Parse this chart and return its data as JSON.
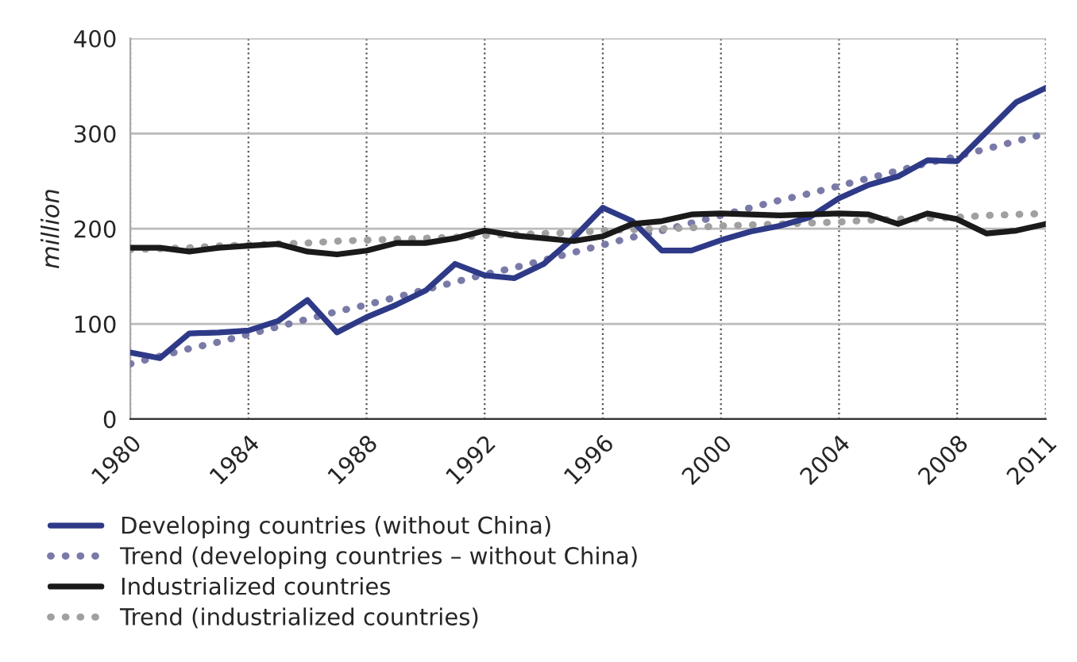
{
  "chart_data": {
    "type": "line",
    "ylabel": "million",
    "x": [
      1980,
      1981,
      1982,
      1983,
      1984,
      1985,
      1986,
      1987,
      1988,
      1989,
      1990,
      1991,
      1992,
      1993,
      1994,
      1995,
      1996,
      1997,
      1998,
      1999,
      2000,
      2001,
      2002,
      2003,
      2004,
      2005,
      2006,
      2007,
      2008,
      2009,
      2010,
      2011
    ],
    "series": [
      {
        "name": "Developing countries (without China)",
        "color": "#2e3a87",
        "line_style": "solid",
        "values": [
          70,
          64,
          90,
          91,
          93,
          103,
          125,
          91,
          107,
          120,
          135,
          163,
          151,
          148,
          163,
          190,
          222,
          208,
          177,
          177,
          188,
          197,
          203,
          212,
          232,
          246,
          255,
          272,
          271,
          302,
          333,
          348
        ]
      },
      {
        "name": "Trend (developing countries – without China)",
        "color": "#7a7aa8",
        "line_style": "dotted",
        "values": [
          58,
          66,
          74,
          81,
          89,
          97,
          105,
          113,
          120,
          128,
          136,
          144,
          152,
          159,
          167,
          175,
          183,
          191,
          198,
          206,
          214,
          222,
          230,
          237,
          245,
          253,
          261,
          269,
          276,
          284,
          292,
          300
        ]
      },
      {
        "name": "Industrialized countries",
        "color": "#1a1a1a",
        "line_style": "solid",
        "values": [
          180,
          180,
          176,
          180,
          182,
          184,
          176,
          173,
          177,
          185,
          185,
          190,
          198,
          193,
          190,
          187,
          192,
          205,
          208,
          215,
          216,
          215,
          214,
          215,
          216,
          215,
          205,
          216,
          210,
          195,
          198,
          205
        ]
      },
      {
        "name": "Trend (industrialized countries)",
        "color": "#a0a0a0",
        "line_style": "dotted",
        "values": [
          178,
          179,
          180,
          182,
          183,
          184,
          185,
          187,
          188,
          189,
          190,
          191,
          193,
          194,
          195,
          196,
          198,
          199,
          200,
          201,
          203,
          204,
          205,
          206,
          207,
          209,
          210,
          211,
          212,
          214,
          215,
          216
        ]
      }
    ],
    "xlim": [
      1980,
      2011
    ],
    "xticks": [
      1980,
      1984,
      1988,
      1992,
      1996,
      2000,
      2004,
      2008,
      2011
    ],
    "ylim": [
      0,
      400
    ],
    "yticks": [
      0,
      100,
      200,
      300,
      400
    ],
    "grid": true,
    "legend": "bottom",
    "marker": "none"
  }
}
